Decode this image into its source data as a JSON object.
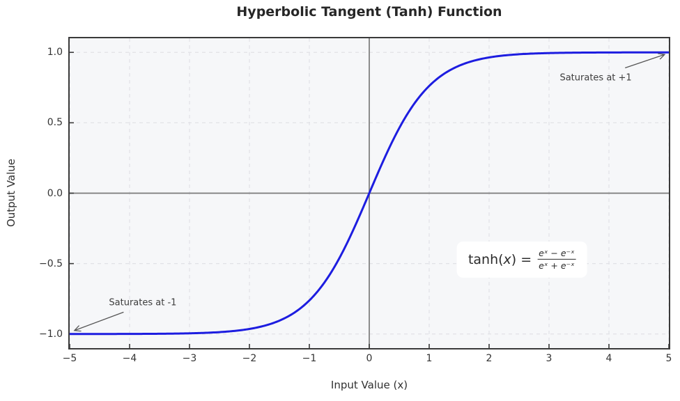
{
  "title": "Hyperbolic Tangent (Tanh) Function",
  "colors": {
    "curve": "#1d1de0",
    "grid": "#e1e2e6",
    "plot_bg": "#f6f7f9",
    "spine": "#3a3a3a",
    "zero_line": "#7a7a7a",
    "annotation_arrow": "#555555",
    "text": "#262626"
  },
  "chart_data": {
    "type": "line",
    "title": "Hyperbolic Tangent (Tanh) Function",
    "xlabel": "Input Value (x)",
    "ylabel": "Output Value",
    "xlim": [
      -5,
      5
    ],
    "ylim": [
      -1.1,
      1.1
    ],
    "x_ticks": [
      -5,
      -4,
      -3,
      -2,
      -1,
      0,
      1,
      2,
      3,
      4,
      5
    ],
    "x_tick_labels": [
      "−5",
      "−4",
      "−3",
      "−2",
      "−1",
      "0",
      "1",
      "2",
      "3",
      "4",
      "5"
    ],
    "y_ticks": [
      -1.0,
      -0.5,
      0.0,
      0.5,
      1.0
    ],
    "y_tick_labels": [
      "−1.0",
      "−0.5",
      "0.0",
      "0.5",
      "1.0"
    ],
    "grid": true,
    "grid_style": "dashed",
    "legend": "none",
    "zero_lines": {
      "horizontal_at_y": 0,
      "vertical_at_x": 0
    },
    "series": [
      {
        "name": "tanh(x)",
        "function": "tanh",
        "color": "#1d1de0",
        "linewidth": 3,
        "x_samples": [
          -5,
          -4.5,
          -4,
          -3.5,
          -3,
          -2.5,
          -2,
          -1.5,
          -1,
          -0.5,
          0,
          0.5,
          1,
          1.5,
          2,
          2.5,
          3,
          3.5,
          4,
          4.5,
          5
        ],
        "y_samples": [
          -0.9999,
          -0.9998,
          -0.9993,
          -0.9982,
          -0.9951,
          -0.9866,
          -0.964,
          -0.9051,
          -0.7616,
          -0.4621,
          0,
          0.4621,
          0.7616,
          0.9051,
          0.964,
          0.9866,
          0.9951,
          0.9982,
          0.9993,
          0.9998,
          0.9999
        ]
      }
    ],
    "annotations": [
      {
        "text": "Saturates at +1",
        "text_xy": [
          3.78,
          0.82
        ],
        "arrow_from": [
          4.27,
          0.89
        ],
        "arrow_to": [
          4.93,
          0.985
        ]
      },
      {
        "text": "Saturates at -1",
        "text_xy": [
          -3.78,
          -0.78
        ],
        "arrow_from": [
          -4.1,
          -0.845
        ],
        "arrow_to": [
          -4.92,
          -0.975
        ]
      }
    ],
    "formula_box": {
      "lhs_pre": "tanh(",
      "lhs_var": "x",
      "lhs_post": ") =",
      "numerator": "eˣ − e⁻ˣ",
      "denominator": "eˣ + e⁻ˣ",
      "center_xy": [
        2.55,
        -0.47
      ]
    }
  }
}
